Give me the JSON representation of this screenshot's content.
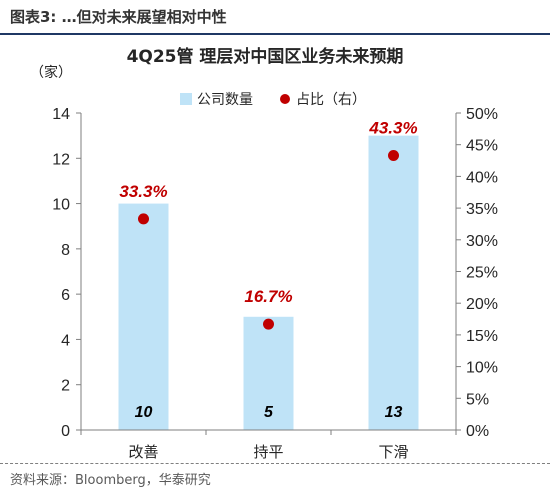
{
  "figure": {
    "title": "图表3:  …但对未来展望相对中性",
    "source": "资料来源：Bloomberg，华泰研究"
  },
  "colors": {
    "bar": "#bfe3f7",
    "dot": "#c00000",
    "rule": "#1f3864"
  },
  "chart_data": {
    "type": "bar",
    "title": "4Q25管 理层对中国区业务未来预期",
    "y_unit": "（家）",
    "categories": [
      "改善",
      "持平",
      "下滑"
    ],
    "series": [
      {
        "name": "公司数量",
        "type": "bar",
        "axis": "left",
        "values": [
          10,
          5,
          13
        ],
        "labels": [
          "10",
          "5",
          "13"
        ]
      },
      {
        "name": "占比（右）",
        "type": "scatter",
        "axis": "right",
        "values": [
          33.3,
          16.7,
          43.3
        ],
        "labels": [
          "33.3%",
          "16.7%",
          "43.3%"
        ]
      }
    ],
    "y_left": {
      "min": 0,
      "max": 14,
      "ticks": [
        "0",
        "2",
        "4",
        "6",
        "8",
        "10",
        "12",
        "14"
      ]
    },
    "y_right": {
      "min": 0,
      "max": 50,
      "ticks": [
        "0%",
        "5%",
        "10%",
        "15%",
        "20%",
        "25%",
        "30%",
        "35%",
        "40%",
        "45%",
        "50%"
      ]
    },
    "legend_position": "top-center",
    "grid": false
  }
}
